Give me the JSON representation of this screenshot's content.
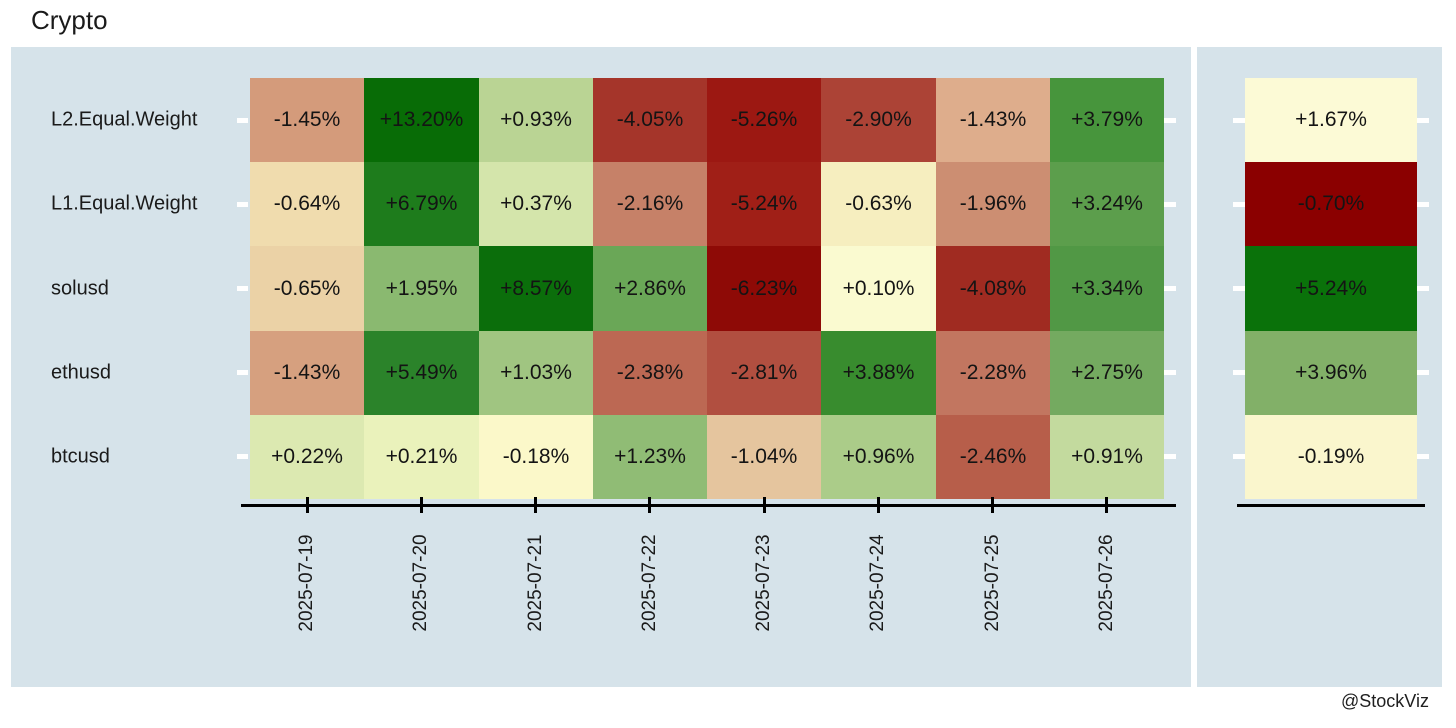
{
  "page_title": "Crypto",
  "footer": {
    "credit": "@StockViz"
  },
  "chart_data": {
    "type": "heatmap",
    "title": "Crypto",
    "value_format": "percent_signed",
    "legend_position": "none",
    "x_labels": [
      "2025-07-19",
      "2025-07-20",
      "2025-07-21",
      "2025-07-22",
      "2025-07-23",
      "2025-07-24",
      "2025-07-25",
      "2025-07-26"
    ],
    "y_labels": [
      "L2.Equal.Weight",
      "L1.Equal.Weight",
      "solusd",
      "ethusd",
      "btcusd"
    ],
    "series": [
      {
        "name": "L2.Equal.Weight",
        "values": [
          -1.45,
          13.2,
          0.93,
          -4.05,
          -5.26,
          -2.9,
          -1.43,
          3.79
        ],
        "labels": [
          "-1.45%",
          "+13.20%",
          "+0.93%",
          "-4.05%",
          "-5.26%",
          "-2.90%",
          "-1.43%",
          "+3.79%"
        ],
        "colors": [
          "#d49b7b",
          "#086c06",
          "#bad494",
          "#a5352a",
          "#9c1812",
          "#ac4336",
          "#dead8c",
          "#47953c"
        ]
      },
      {
        "name": "L1.Equal.Weight",
        "values": [
          -0.64,
          6.79,
          0.37,
          -2.16,
          -5.24,
          -0.63,
          -1.96,
          3.24
        ],
        "labels": [
          "-0.64%",
          "+6.79%",
          "+0.37%",
          "-2.16%",
          "-5.24%",
          "-0.63%",
          "-1.96%",
          "+3.24%"
        ],
        "colors": [
          "#f0dcae",
          "#1e7c1c",
          "#d4e5ab",
          "#c68168",
          "#a01f17",
          "#f6eebf",
          "#cc8e72",
          "#5c9e4c"
        ]
      },
      {
        "name": "solusd",
        "values": [
          -0.65,
          1.95,
          8.57,
          2.86,
          -6.23,
          0.1,
          -4.08,
          3.34
        ],
        "labels": [
          "-0.65%",
          "+1.95%",
          "+8.57%",
          "+2.86%",
          "-6.23%",
          "+0.10%",
          "-4.08%",
          "+3.34%"
        ],
        "colors": [
          "#ebd2a6",
          "#8ab970",
          "#0b6e0b",
          "#6aa757",
          "#8e0a06",
          "#fafad0",
          "#a02b21",
          "#519845"
        ]
      },
      {
        "name": "ethusd",
        "values": [
          -1.43,
          5.49,
          1.03,
          -2.38,
          -2.81,
          3.88,
          -2.28,
          2.75
        ],
        "labels": [
          "-1.43%",
          "+5.49%",
          "+1.03%",
          "-2.38%",
          "-2.81%",
          "+3.88%",
          "-2.28%",
          "+2.75%"
        ],
        "colors": [
          "#d6a07f",
          "#2b832a",
          "#a0c581",
          "#bc6853",
          "#b14f40",
          "#388c2e",
          "#c27660",
          "#74aa60"
        ]
      },
      {
        "name": "btcusd",
        "values": [
          0.22,
          0.21,
          -0.18,
          1.23,
          -1.04,
          0.96,
          -2.46,
          0.91
        ],
        "labels": [
          "+0.22%",
          "+0.21%",
          "-0.18%",
          "+1.23%",
          "-1.04%",
          "+0.96%",
          "-2.46%",
          "+0.91%"
        ],
        "colors": [
          "#dce9b1",
          "#eaf2bb",
          "#fbf8c9",
          "#90bc75",
          "#e5c59e",
          "#abcc89",
          "#b75e4a",
          "#c3da9e"
        ]
      }
    ],
    "summary_column": {
      "values": [
        1.67,
        -0.7,
        5.24,
        3.96,
        -0.19
      ],
      "labels": [
        "+1.67%",
        "-0.70%",
        "+5.24%",
        "+3.96%",
        "-0.19%"
      ],
      "colors": [
        "#fcfad6",
        "#8b0000",
        "#0a720a",
        "#82b068",
        "#faf6cd"
      ]
    },
    "colors": {
      "panel_background": "#d6e3ea",
      "axis_line": "#000000",
      "text": "#1a1a1a",
      "tick_mark_white": "#ffffff",
      "scale_negative_extreme": "#8b0000",
      "scale_neutral": "#ffffcc",
      "scale_positive_extreme": "#006400"
    }
  }
}
